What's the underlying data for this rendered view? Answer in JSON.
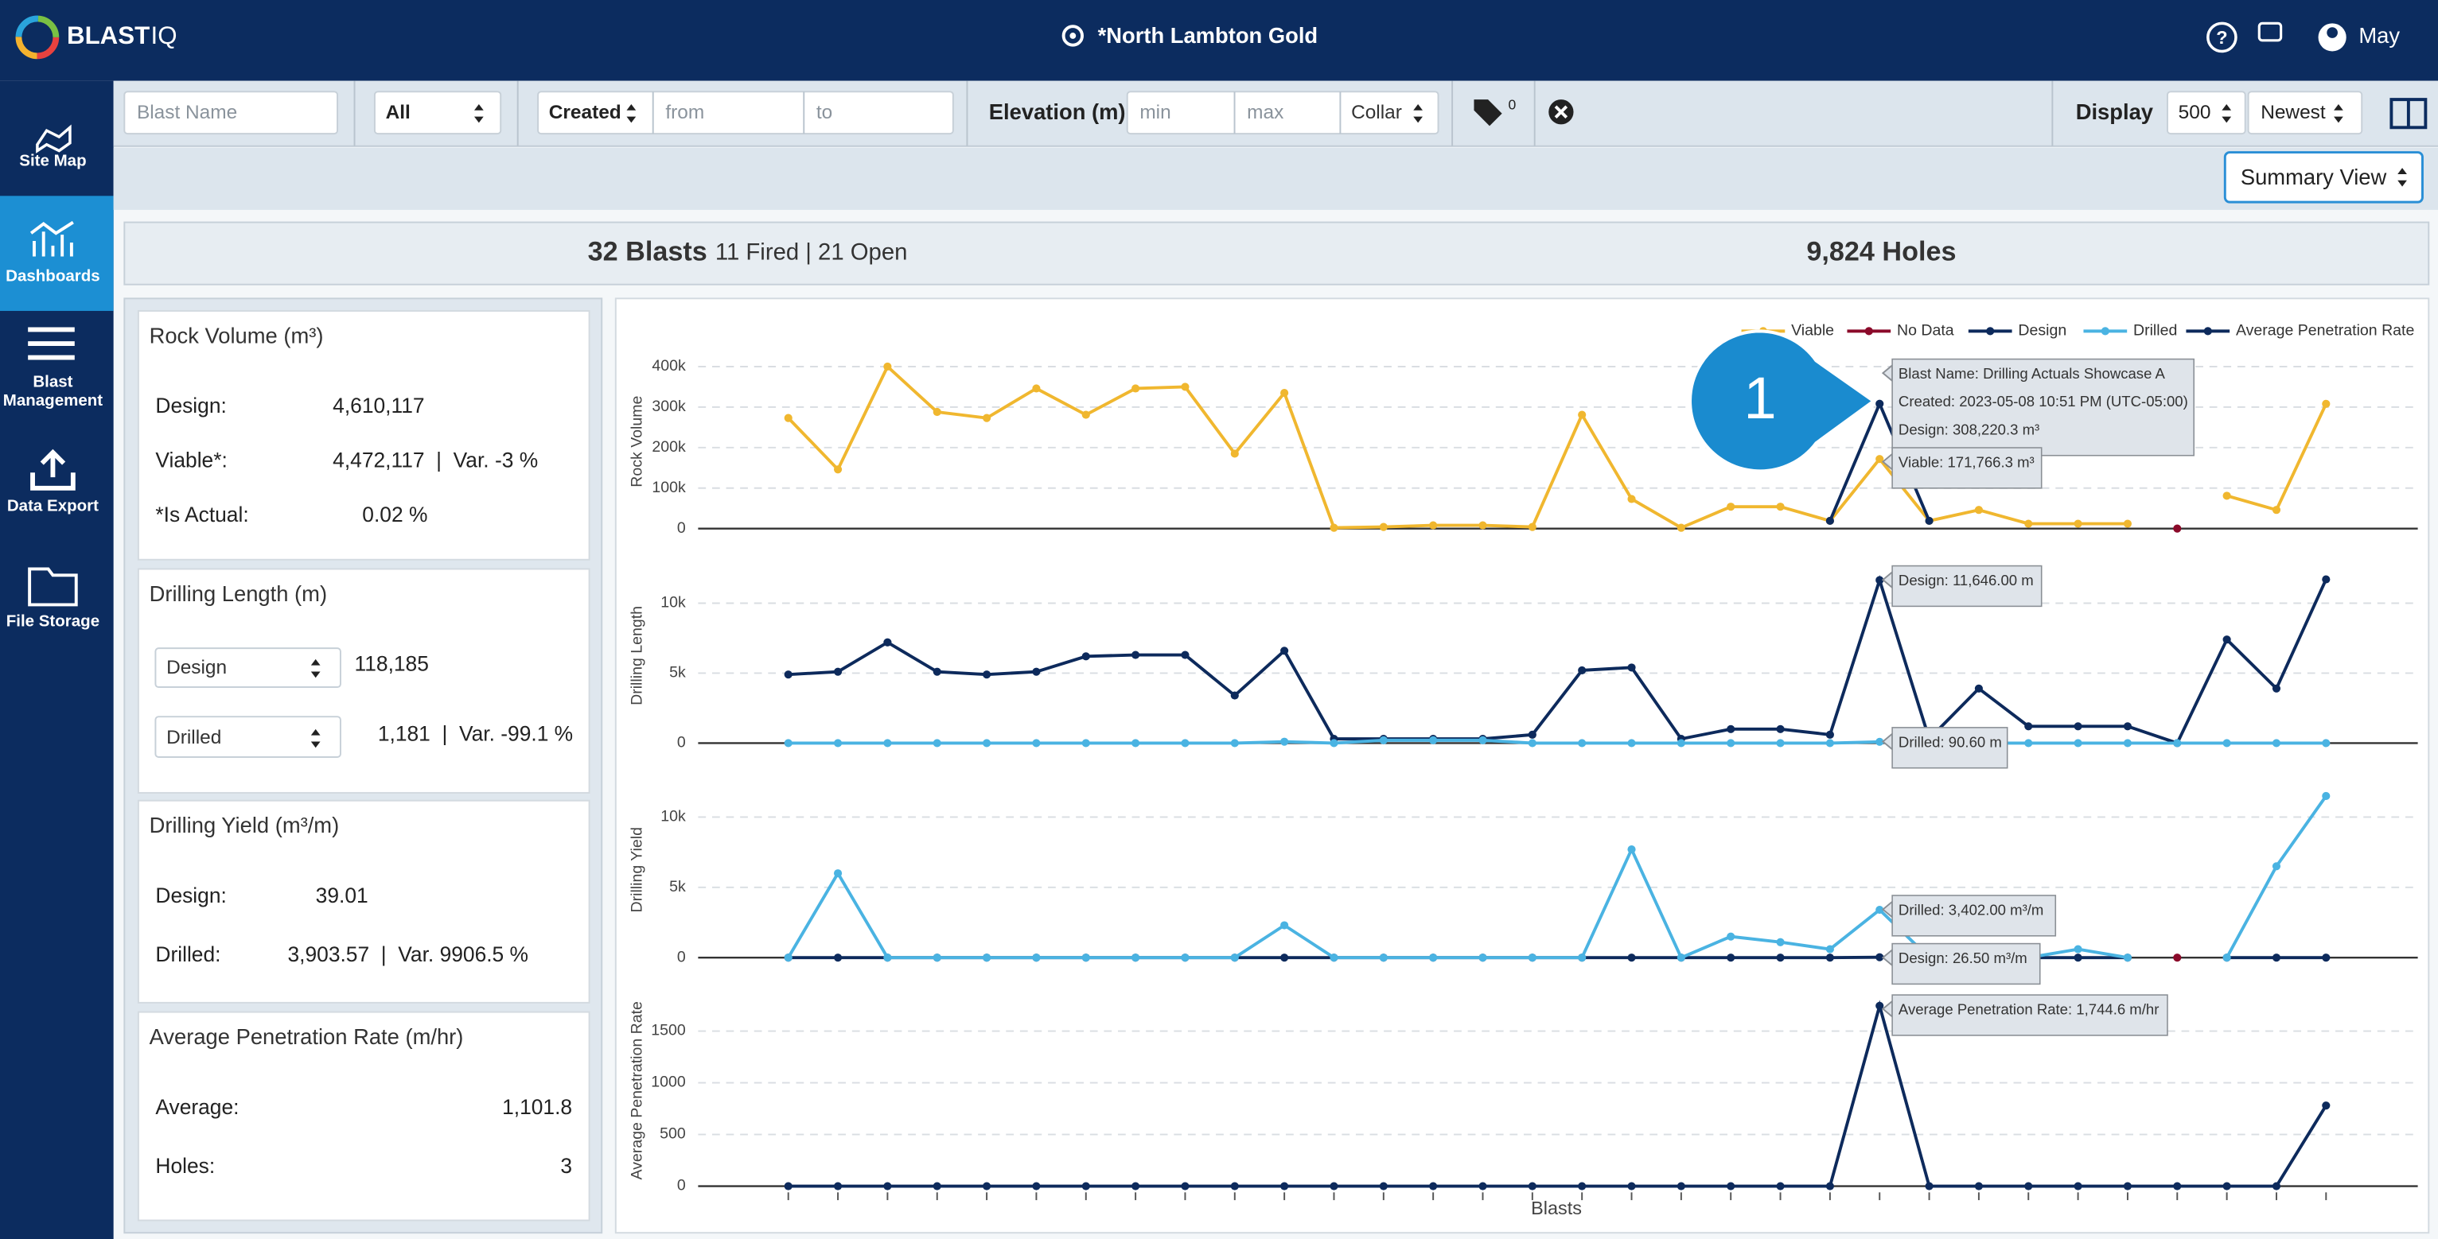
{
  "header": {
    "brand": "BLAST",
    "brand_suffix": "IQ",
    "site": "*North Lambton Gold",
    "user": "May"
  },
  "nav": [
    {
      "label": "Site Map"
    },
    {
      "label": "Dashboards"
    },
    {
      "label": "Blast"
    },
    {
      "label": "Management"
    },
    {
      "label": "Data Export"
    },
    {
      "label": "File Storage"
    }
  ],
  "filters": {
    "blast_name": "Blast Name",
    "status": "All",
    "date_field": "Created",
    "from": "from",
    "to": "to",
    "elevation": "Elevation (m)",
    "min": "min",
    "max": "max",
    "collar": "Collar",
    "tag_count": "0",
    "display": "Display",
    "limit": "500",
    "order": "Newest",
    "view": "Summary View"
  },
  "summary": {
    "blasts": "32 Blasts",
    "status": "11 Fired | 21 Open",
    "holes": "9,824 Holes"
  },
  "cards": [
    {
      "title": "Rock Volume (m³)",
      "rows": [
        {
          "label": "Design:",
          "value": "4,610,117"
        },
        {
          "label": "Viable*:",
          "value": "4,472,117  |  Var. -3 %"
        },
        {
          "label": "*Is Actual:",
          "value": "0.02 %"
        }
      ]
    },
    {
      "title": "Drilling Length (m)",
      "rows": [
        {
          "label": "Design",
          "value": "118,185"
        },
        {
          "label": "Drilled",
          "value": "1,181  |  Var. -99.1 %"
        }
      ]
    },
    {
      "title": "Drilling Yield (m³/m)",
      "rows": [
        {
          "label": "Design:",
          "value": "39.01"
        },
        {
          "label": "Drilled:",
          "value": "3,903.57  |  Var. 9906.5 %"
        }
      ]
    },
    {
      "title": "Average Penetration Rate (m/hr)",
      "rows": [
        {
          "label": "Average:",
          "value": "1,101.8"
        },
        {
          "label": "Holes:",
          "value": "3"
        }
      ]
    }
  ],
  "callout": "1",
  "charts": {
    "x_label": "Blasts",
    "panels": [
      {
        "y_label": "Rock Volume",
        "ylim": [
          0,
          430000
        ],
        "yticks": [
          0,
          {
            "value": 100000,
            "label": "100k"
          },
          {
            "value": 200000,
            "label": "200k"
          },
          {
            "value": 300000,
            "label": "300k"
          },
          {
            "value": 400000,
            "label": "400k"
          }
        ],
        "series": [
          {
            "name": "Viable",
            "color": "#f0b72f",
            "values": [
              273000,
              146000,
              400000,
              288000,
              273000,
              346000,
              281000,
              346000,
              350000,
              185000,
              335000,
              2000,
              4000,
              8000,
              8000,
              4000,
              281000,
              73000,
              2000,
              54000,
              54000,
              19000,
              171766.3,
              19000,
              46000,
              12000,
              12000,
              12000,
              null,
              81000,
              46000,
              308000
            ]
          },
          {
            "name": "No Data",
            "color": "#8b0a2a",
            "values": [
              null,
              null,
              null,
              null,
              null,
              null,
              null,
              null,
              null,
              null,
              null,
              null,
              null,
              null,
              null,
              null,
              null,
              null,
              null,
              null,
              null,
              null,
              null,
              null,
              null,
              null,
              null,
              null,
              0,
              null,
              null,
              null
            ]
          },
          {
            "name": "Design",
            "color": "#0d2a5c",
            "values": [
              null,
              null,
              null,
              null,
              null,
              null,
              null,
              null,
              null,
              null,
              null,
              null,
              null,
              null,
              null,
              null,
              null,
              null,
              null,
              null,
              null,
              19000,
              308220.3,
              19000,
              null,
              null,
              null,
              null,
              null,
              null,
              null,
              null
            ]
          }
        ],
        "tooltips": [
          [
            "Blast Name: Drilling Actuals Showcase A",
            "Created: 2023-05-08 10:51 PM (UTC-05:00)",
            "Design: 308,220.3 m³"
          ],
          [
            "Viable: 171,766.3 m³"
          ]
        ]
      },
      {
        "y_label": "Drilling Length",
        "ylim": [
          0,
          12500
        ],
        "yticks": [
          0,
          {
            "value": 5000,
            "label": "5k"
          },
          {
            "value": 10000,
            "label": "10k"
          }
        ],
        "series": [
          {
            "name": "Design",
            "color": "#0d2a5c",
            "values": [
              4900,
              5100,
              7200,
              5100,
              4900,
              5100,
              6200,
              6300,
              6300,
              3400,
              6600,
              300,
              300,
              300,
              300,
              600,
              5200,
              5400,
              300,
              1000,
              1000,
              600,
              11646,
              300,
              3900,
              1200,
              1200,
              1200,
              0,
              7400,
              3900,
              11700
            ]
          },
          {
            "name": "Drilled",
            "color": "#4ab3e2",
            "values": [
              0,
              0,
              0,
              0,
              0,
              0,
              0,
              0,
              0,
              0,
              100,
              0,
              200,
              200,
              200,
              0,
              0,
              0,
              0,
              0,
              0,
              0,
              90.6,
              0,
              0,
              0,
              0,
              0,
              0,
              0,
              0,
              0
            ]
          }
        ],
        "tooltips": [
          [
            "Design: 11,646.00 m"
          ],
          [
            "Drilled: 90.60 m"
          ]
        ]
      },
      {
        "y_label": "Drilling Yield",
        "ylim": [
          0,
          12500
        ],
        "yticks": [
          0,
          {
            "value": 5000,
            "label": "5k"
          },
          {
            "value": 10000,
            "label": "10k"
          }
        ],
        "series": [
          {
            "name": "Design",
            "color": "#0d2a5c",
            "values": [
              0,
              0,
              0,
              0,
              0,
              0,
              0,
              0,
              0,
              0,
              0,
              0,
              0,
              0,
              0,
              0,
              0,
              0,
              0,
              0,
              0,
              0,
              26.5,
              0,
              0,
              0,
              0,
              0,
              null,
              0,
              0,
              0
            ]
          },
          {
            "name": "Drilled",
            "color": "#4ab3e2",
            "values": [
              0,
              6000,
              0,
              0,
              0,
              0,
              0,
              0,
              0,
              0,
              2300,
              0,
              0,
              0,
              0,
              0,
              0,
              7700,
              0,
              1500,
              1100,
              600,
              3402,
              0,
              0,
              0,
              600,
              0,
              null,
              0,
              6500,
              11500
            ]
          },
          {
            "name": "No Data",
            "color": "#8b0a2a",
            "values": [
              null,
              null,
              null,
              null,
              null,
              null,
              null,
              null,
              null,
              null,
              null,
              null,
              null,
              null,
              null,
              null,
              null,
              null,
              null,
              null,
              null,
              null,
              null,
              null,
              null,
              null,
              null,
              null,
              0,
              null,
              null,
              null
            ]
          }
        ],
        "tooltips": [
          [
            "Drilled: 3,402.00 m³/m"
          ],
          [
            "Design: 26.50 m³/m"
          ]
        ]
      },
      {
        "y_label": "Average Penetration Rate",
        "ylim": [
          0,
          1850
        ],
        "yticks": [
          0,
          500,
          1000,
          1500
        ],
        "series": [
          {
            "name": "Average Penetration Rate",
            "color": "#0d2a5c",
            "values": [
              0,
              0,
              0,
              0,
              0,
              0,
              0,
              0,
              0,
              0,
              0,
              0,
              0,
              0,
              0,
              0,
              0,
              0,
              0,
              0,
              0,
              0,
              1744.6,
              0,
              0,
              0,
              0,
              0,
              0,
              0,
              0,
              780
            ]
          }
        ],
        "tooltips": [
          [
            "Average Penetration Rate: 1,744.6 m/hr"
          ]
        ]
      }
    ]
  }
}
